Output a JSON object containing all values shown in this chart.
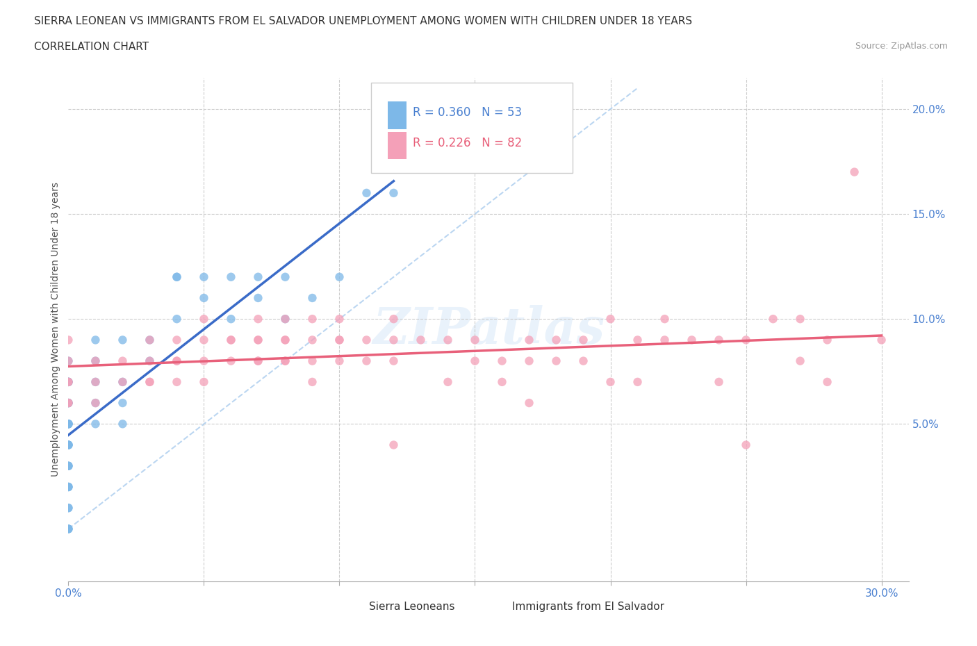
{
  "title_line1": "SIERRA LEONEAN VS IMMIGRANTS FROM EL SALVADOR UNEMPLOYMENT AMONG WOMEN WITH CHILDREN UNDER 18 YEARS",
  "title_line2": "CORRELATION CHART",
  "source_text": "Source: ZipAtlas.com",
  "xlim": [
    0.0,
    0.31
  ],
  "ylim": [
    -0.025,
    0.215
  ],
  "color_blue": "#7DB8E8",
  "color_pink": "#F4A0B8",
  "color_blue_line": "#3A6BC8",
  "color_pink_line": "#E8607A",
  "watermark_text": "ZIPatlas",
  "blue_dots_x": [
    0.0,
    0.0,
    0.0,
    0.0,
    0.0,
    0.0,
    0.0,
    0.0,
    0.0,
    0.0,
    0.0,
    0.0,
    0.0,
    0.0,
    0.0,
    0.0,
    0.0,
    0.0,
    0.0,
    0.0,
    0.0,
    0.0,
    0.0,
    0.0,
    0.0,
    0.0,
    0.0,
    0.01,
    0.01,
    0.01,
    0.01,
    0.01,
    0.02,
    0.02,
    0.02,
    0.02,
    0.03,
    0.03,
    0.04,
    0.04,
    0.04,
    0.05,
    0.05,
    0.06,
    0.06,
    0.07,
    0.07,
    0.08,
    0.08,
    0.09,
    0.1,
    0.11,
    0.12
  ],
  "blue_dots_y": [
    0.07,
    0.06,
    0.06,
    0.05,
    0.05,
    0.05,
    0.04,
    0.04,
    0.04,
    0.03,
    0.03,
    0.02,
    0.02,
    0.01,
    0.01,
    0.0,
    0.0,
    0.0,
    0.06,
    0.05,
    0.07,
    0.08,
    0.07,
    0.05,
    0.04,
    0.03,
    0.02,
    0.07,
    0.08,
    0.09,
    0.06,
    0.05,
    0.09,
    0.07,
    0.06,
    0.05,
    0.09,
    0.08,
    0.12,
    0.12,
    0.1,
    0.12,
    0.11,
    0.12,
    0.1,
    0.12,
    0.11,
    0.12,
    0.1,
    0.11,
    0.12,
    0.16,
    0.16
  ],
  "pink_dots_x": [
    0.0,
    0.0,
    0.0,
    0.0,
    0.0,
    0.0,
    0.01,
    0.01,
    0.01,
    0.02,
    0.02,
    0.03,
    0.03,
    0.03,
    0.03,
    0.04,
    0.04,
    0.04,
    0.04,
    0.05,
    0.05,
    0.05,
    0.05,
    0.06,
    0.06,
    0.06,
    0.07,
    0.07,
    0.07,
    0.07,
    0.07,
    0.08,
    0.08,
    0.08,
    0.08,
    0.08,
    0.09,
    0.09,
    0.09,
    0.09,
    0.1,
    0.1,
    0.1,
    0.1,
    0.11,
    0.11,
    0.12,
    0.12,
    0.12,
    0.12,
    0.13,
    0.14,
    0.14,
    0.15,
    0.15,
    0.16,
    0.16,
    0.17,
    0.17,
    0.17,
    0.18,
    0.18,
    0.19,
    0.19,
    0.2,
    0.2,
    0.21,
    0.21,
    0.22,
    0.22,
    0.23,
    0.24,
    0.24,
    0.25,
    0.25,
    0.26,
    0.27,
    0.27,
    0.28,
    0.28,
    0.29,
    0.3
  ],
  "pink_dots_y": [
    0.06,
    0.07,
    0.07,
    0.06,
    0.08,
    0.09,
    0.06,
    0.07,
    0.08,
    0.07,
    0.08,
    0.07,
    0.08,
    0.09,
    0.07,
    0.08,
    0.08,
    0.09,
    0.07,
    0.09,
    0.08,
    0.1,
    0.07,
    0.09,
    0.08,
    0.09,
    0.08,
    0.09,
    0.09,
    0.1,
    0.08,
    0.09,
    0.09,
    0.08,
    0.1,
    0.08,
    0.09,
    0.1,
    0.07,
    0.08,
    0.09,
    0.1,
    0.08,
    0.09,
    0.08,
    0.09,
    0.09,
    0.1,
    0.04,
    0.08,
    0.09,
    0.07,
    0.09,
    0.09,
    0.08,
    0.07,
    0.08,
    0.06,
    0.08,
    0.09,
    0.08,
    0.09,
    0.08,
    0.09,
    0.1,
    0.07,
    0.07,
    0.09,
    0.09,
    0.1,
    0.09,
    0.07,
    0.09,
    0.09,
    0.04,
    0.1,
    0.1,
    0.08,
    0.09,
    0.07,
    0.17,
    0.09
  ]
}
